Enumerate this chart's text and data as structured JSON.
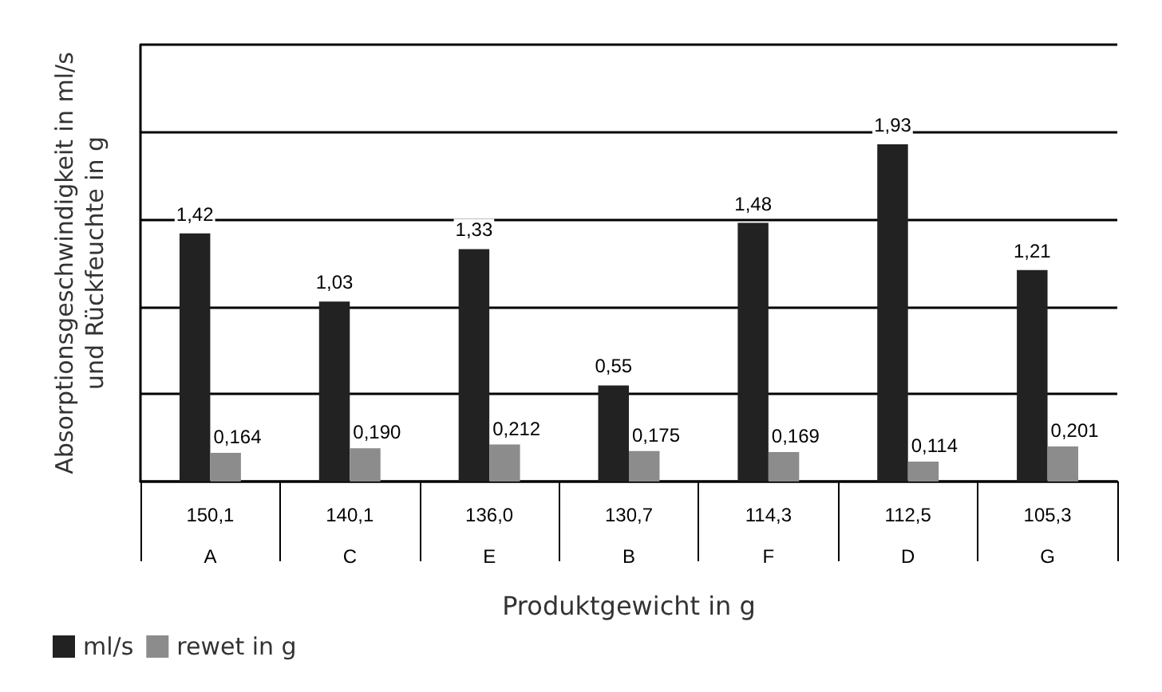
{
  "chart_data": {
    "type": "bar",
    "xlabel": "Produktgewicht in g",
    "ylabel": "Absorptionsgeschwindigkeit in ml/s\nund Rückfeuchte in g",
    "categories": [
      "150,1\nA",
      "140,1\nC",
      "136,0\nE",
      "130,7\nB",
      "114,3\nF",
      "112,5\nD",
      "105,3\nG"
    ],
    "series": [
      {
        "name": "ml/s",
        "color": "#222222",
        "values": [
          1.42,
          1.03,
          1.33,
          0.55,
          1.48,
          1.93,
          1.21
        ],
        "value_labels": [
          "1,42",
          "1,03",
          "1,33",
          "0,55",
          "1,48",
          "1,93",
          "1,21"
        ]
      },
      {
        "name": "rewet in g",
        "color": "#8c8c8c",
        "values": [
          0.164,
          0.19,
          0.212,
          0.175,
          0.169,
          0.114,
          0.201
        ],
        "value_labels": [
          "0,164",
          "0,190",
          "0,212",
          "0,175",
          "0,169",
          "0,114",
          "0,201"
        ]
      }
    ],
    "ylim": [
      0,
      2.5
    ],
    "yticks": [
      {
        "value": 0,
        "label": null
      },
      {
        "value": 0.5,
        "label": null
      },
      {
        "value": 1,
        "label": null
      },
      {
        "value": 1.5,
        "label": null
      },
      {
        "value": 2,
        "label": null
      },
      {
        "value": 2.5,
        "label": null
      }
    ],
    "grid": "y",
    "legend": "bottom left"
  }
}
